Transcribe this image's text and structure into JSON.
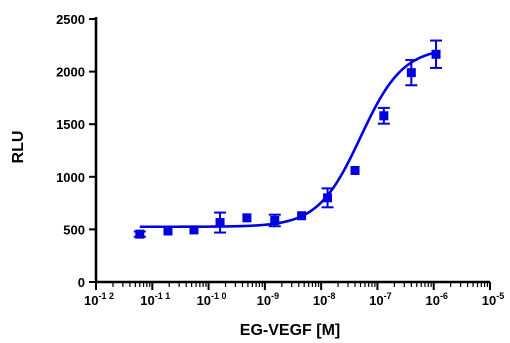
{
  "chart_data": {
    "type": "scatter",
    "title": "",
    "xlabel": "EG-VEGF [M]",
    "ylabel": "RLU",
    "x_scale": "log",
    "xlim": [
      1e-12,
      1e-05
    ],
    "ylim": [
      0,
      2500
    ],
    "x_ticks": [
      {
        "base": "10",
        "exp": "-1 2"
      },
      {
        "base": "10",
        "exp": "-1 1"
      },
      {
        "base": "10",
        "exp": "-1 0"
      },
      {
        "base": "10",
        "exp": "-9"
      },
      {
        "base": "10",
        "exp": "-8"
      },
      {
        "base": "10",
        "exp": "-7"
      },
      {
        "base": "10",
        "exp": "-6"
      },
      {
        "base": "10",
        "exp": "-5"
      }
    ],
    "y_ticks": [
      "0",
      "500",
      "1000",
      "1500",
      "2000",
      "2500"
    ],
    "grid": false,
    "color": "#0000e0",
    "series": [
      {
        "x": [
          6e-12,
          1.9e-11,
          5.5e-11,
          1.6e-10,
          4.8e-10,
          1.5e-09,
          4.5e-09,
          1.3e-08,
          4e-08,
          1.3e-07,
          4e-07,
          1.1e-06
        ],
        "y": [
          455,
          485,
          495,
          565,
          610,
          585,
          630,
          800,
          1060,
          1580,
          1990,
          2165
        ],
        "err": [
          25,
          0,
          0,
          95,
          0,
          55,
          0,
          90,
          0,
          75,
          120,
          130
        ]
      }
    ],
    "fit": {
      "type": "sigmoid",
      "bottom": 525,
      "top": 2230,
      "log_ec50": -7.3,
      "hill": 1.15
    }
  }
}
